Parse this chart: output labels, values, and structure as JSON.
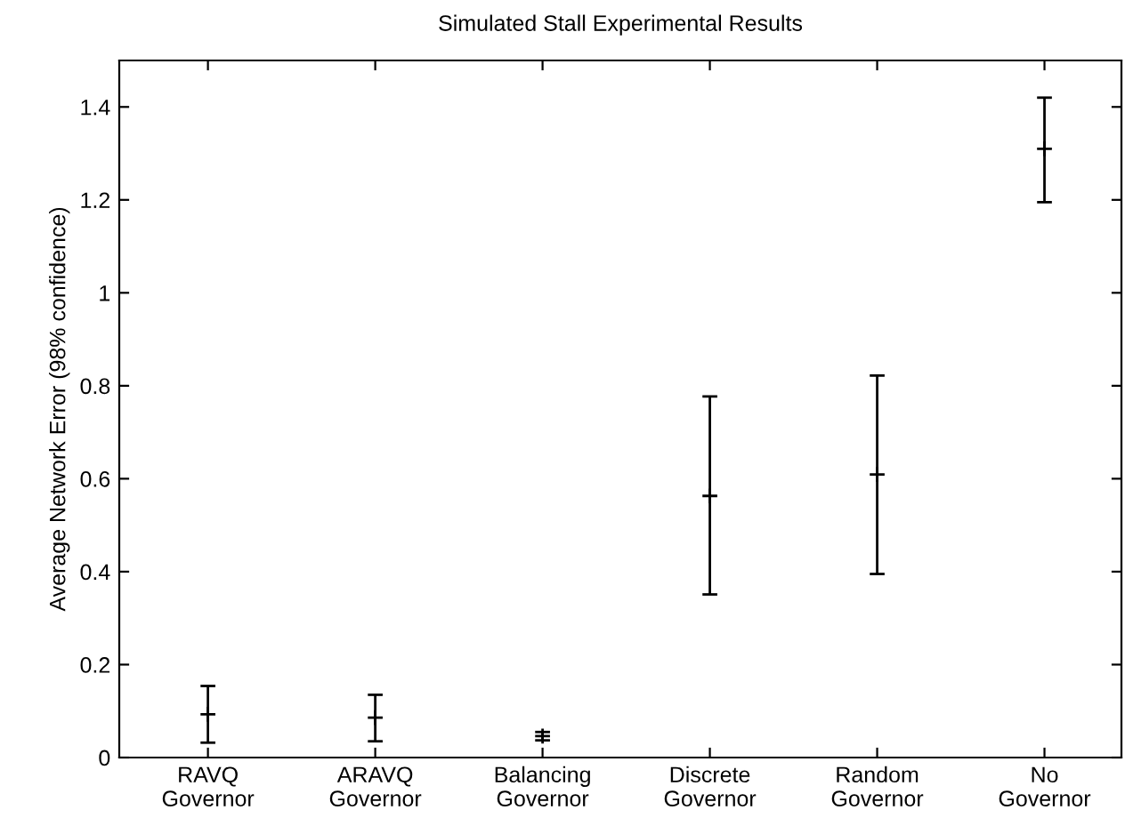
{
  "chart_data": {
    "type": "scatter",
    "title": "Simulated Stall Experimental Results",
    "ylabel": "Average Network Error (98% confidence)",
    "categories": [
      "RAVQ\nGovernor",
      "ARAVQ\nGovernor",
      "Balancing\nGovernor",
      "Discrete\nGovernor",
      "Random\nGovernor",
      "No\nGovernor"
    ],
    "series": [
      {
        "color": "#000000",
        "values": [
          0.093,
          0.086,
          0.046,
          0.563,
          0.609,
          1.31
        ],
        "errors": [
          [
            0.032,
            0.154
          ],
          [
            0.035,
            0.135
          ],
          [
            0.037,
            0.055
          ],
          [
            0.351,
            0.777
          ],
          [
            0.395,
            0.822
          ],
          [
            1.195,
            1.42
          ]
        ]
      }
    ],
    "ylim": [
      0,
      1.5
    ],
    "yticks": [
      0,
      0.2,
      0.4,
      0.6,
      0.8,
      1,
      1.2,
      1.4
    ],
    "marker": "cross",
    "grid": false,
    "legend": false
  }
}
